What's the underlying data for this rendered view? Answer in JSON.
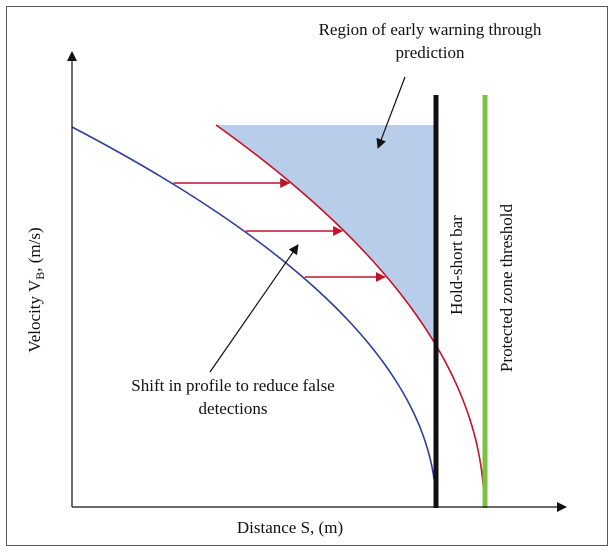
{
  "title": "",
  "axes": {
    "x_label": "Distance S, (m)",
    "y_label_prefix": "Velocity V",
    "y_label_subscript": "B",
    "y_label_suffix": ", (m/s)"
  },
  "annotations": {
    "early_warning_line1": "Region of early warning through",
    "early_warning_line2": "prediction",
    "shift_line1": "Shift in profile to reduce false",
    "shift_line2": "detections",
    "hold_short_bar": "Hold-short bar",
    "protected_zone": "Protected zone threshold"
  },
  "colors": {
    "original_profile": "#2e3f9e",
    "shifted_profile": "#c0142a",
    "early_warning_region": "#b8cdea",
    "shift_arrows": "#c0142a",
    "hold_short_bar": "#111111",
    "protected_zone_threshold": "#7cc242",
    "frame": "#555555"
  }
}
